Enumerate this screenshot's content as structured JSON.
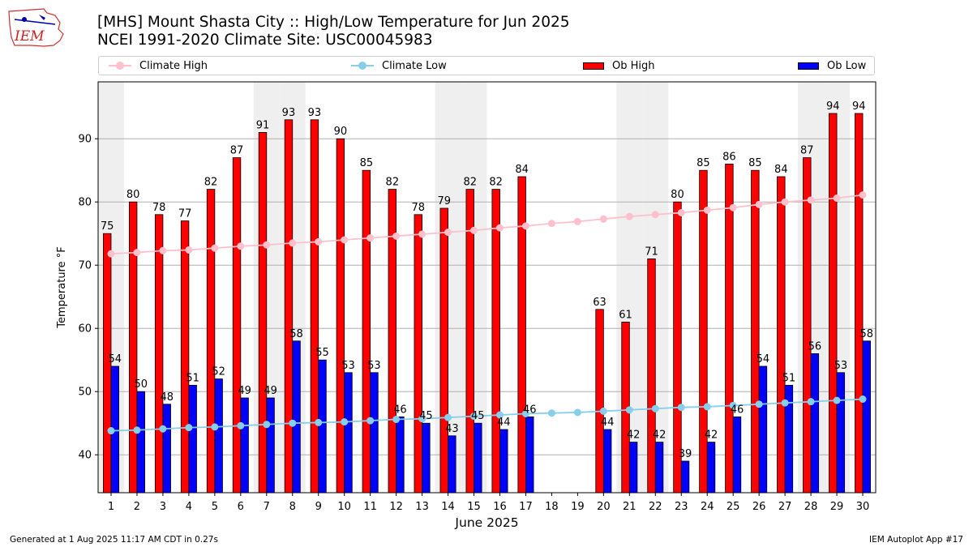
{
  "logo_text": "IEM",
  "header": {
    "title_line1": "[MHS] Mount Shasta City :: High/Low Temperature for Jun 2025",
    "title_line2": "NCEI 1991-2020 Climate Site: USC00045983"
  },
  "legend": {
    "climate_high": "Climate High",
    "climate_low": "Climate Low",
    "ob_high": "Ob High",
    "ob_low": "Ob Low"
  },
  "footer": {
    "generated": "Generated at 1 Aug 2025 11:17 AM CDT in 0.27s",
    "app": "IEM Autoplot App #17"
  },
  "colors": {
    "ob_high": "#ff0000",
    "ob_low": "#0000ff",
    "climate_high": "#ffc0cb",
    "climate_low": "#87ceeb",
    "weekend_shade": "#efefef",
    "grid": "#b0b0b0"
  },
  "chart_data": {
    "type": "bar",
    "xlabel": "June 2025",
    "ylabel": "Temperature °F",
    "ylim": [
      34,
      99
    ],
    "yticks": [
      40,
      50,
      60,
      70,
      80,
      90
    ],
    "grid": "horizontal",
    "legend_position": "top",
    "categories": [
      "1",
      "2",
      "3",
      "4",
      "5",
      "6",
      "7",
      "8",
      "9",
      "10",
      "11",
      "12",
      "13",
      "14",
      "15",
      "16",
      "17",
      "18",
      "19",
      "20",
      "21",
      "22",
      "23",
      "24",
      "25",
      "26",
      "27",
      "28",
      "29",
      "30"
    ],
    "shaded_weekend_days": [
      1,
      7,
      8,
      14,
      15,
      21,
      22,
      28,
      29
    ],
    "series": [
      {
        "name": "Ob High",
        "kind": "bar",
        "values": [
          75,
          80,
          78,
          77,
          82,
          87,
          91,
          93,
          93,
          90,
          85,
          82,
          78,
          79,
          82,
          82,
          84,
          null,
          null,
          63,
          61,
          71,
          80,
          85,
          86,
          85,
          84,
          87,
          94,
          94
        ]
      },
      {
        "name": "Ob Low",
        "kind": "bar",
        "values": [
          54,
          50,
          48,
          51,
          52,
          49,
          49,
          58,
          55,
          53,
          53,
          46,
          45,
          43,
          45,
          44,
          46,
          null,
          null,
          44,
          42,
          42,
          39,
          42,
          46,
          54,
          51,
          56,
          53,
          58
        ]
      },
      {
        "name": "Climate High",
        "kind": "line",
        "values": [
          71.8,
          72.0,
          72.3,
          72.4,
          72.7,
          73.0,
          73.2,
          73.5,
          73.7,
          74.0,
          74.3,
          74.6,
          74.9,
          75.2,
          75.5,
          75.9,
          76.2,
          76.6,
          76.9,
          77.3,
          77.7,
          78.0,
          78.3,
          78.7,
          79.1,
          79.6,
          80.0,
          80.3,
          80.6,
          81.1
        ]
      },
      {
        "name": "Climate Low",
        "kind": "line",
        "values": [
          43.8,
          43.9,
          44.1,
          44.3,
          44.4,
          44.6,
          44.8,
          45.0,
          45.1,
          45.2,
          45.4,
          45.6,
          45.7,
          45.9,
          46.1,
          46.3,
          46.5,
          46.6,
          46.7,
          46.9,
          47.1,
          47.3,
          47.5,
          47.6,
          47.8,
          48.0,
          48.2,
          48.4,
          48.6,
          48.8
        ]
      }
    ]
  }
}
